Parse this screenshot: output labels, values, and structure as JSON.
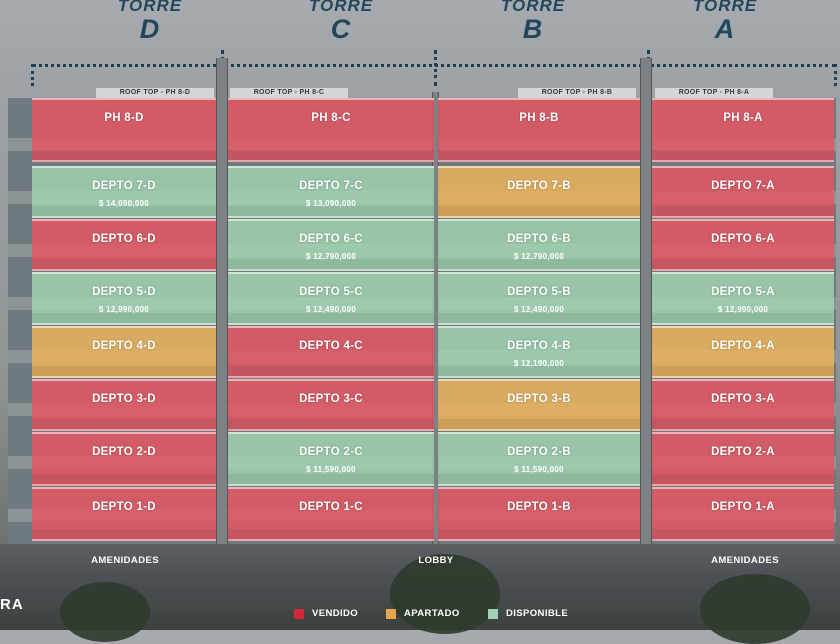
{
  "towers": [
    {
      "word": "TORRE",
      "letter": "D",
      "rooftop": "ROOF TOP - PH 8-D"
    },
    {
      "word": "TORRE",
      "letter": "C",
      "rooftop": "ROOF TOP - PH 8-C"
    },
    {
      "word": "TORRE",
      "letter": "B",
      "rooftop": "ROOF TOP - PH 8-B"
    },
    {
      "word": "TORRE",
      "letter": "A",
      "rooftop": "ROOF TOP - PH 8-A"
    }
  ],
  "floors": [
    {
      "units": [
        {
          "name": "PH 8-D",
          "status": "vendido",
          "price": ""
        },
        {
          "name": "PH 8-C",
          "status": "vendido",
          "price": ""
        },
        {
          "name": "PH 8-B",
          "status": "vendido",
          "price": ""
        },
        {
          "name": "PH 8-A",
          "status": "vendido",
          "price": ""
        }
      ]
    },
    {
      "units": [
        {
          "name": "DEPTO 7-D",
          "status": "disponible",
          "price": "$ 14,090,000"
        },
        {
          "name": "DEPTO 7-C",
          "status": "disponible",
          "price": "$ 13,090,000"
        },
        {
          "name": "DEPTO 7-B",
          "status": "apartado",
          "price": ""
        },
        {
          "name": "DEPTO 7-A",
          "status": "vendido",
          "price": ""
        }
      ]
    },
    {
      "units": [
        {
          "name": "DEPTO 6-D",
          "status": "vendido",
          "price": ""
        },
        {
          "name": "DEPTO 6-C",
          "status": "disponible",
          "price": "$ 12,790,000"
        },
        {
          "name": "DEPTO 6-B",
          "status": "disponible",
          "price": "$ 12,790,000"
        },
        {
          "name": "DEPTO 6-A",
          "status": "vendido",
          "price": ""
        }
      ]
    },
    {
      "units": [
        {
          "name": "DEPTO 5-D",
          "status": "disponible",
          "price": "$ 12,990,000"
        },
        {
          "name": "DEPTO 5-C",
          "status": "disponible",
          "price": "$ 12,490,000"
        },
        {
          "name": "DEPTO 5-B",
          "status": "disponible",
          "price": "$ 12,490,000"
        },
        {
          "name": "DEPTO 5-A",
          "status": "disponible",
          "price": "$ 12,990,000"
        }
      ]
    },
    {
      "units": [
        {
          "name": "DEPTO 4-D",
          "status": "apartado",
          "price": ""
        },
        {
          "name": "DEPTO 4-C",
          "status": "vendido",
          "price": ""
        },
        {
          "name": "DEPTO 4-B",
          "status": "disponible",
          "price": "$ 12,190,000"
        },
        {
          "name": "DEPTO 4-A",
          "status": "apartado",
          "price": ""
        }
      ]
    },
    {
      "units": [
        {
          "name": "DEPTO 3-D",
          "status": "vendido",
          "price": ""
        },
        {
          "name": "DEPTO 3-C",
          "status": "vendido",
          "price": ""
        },
        {
          "name": "DEPTO 3-B",
          "status": "apartado",
          "price": ""
        },
        {
          "name": "DEPTO 3-A",
          "status": "vendido",
          "price": ""
        }
      ]
    },
    {
      "units": [
        {
          "name": "DEPTO 2-D",
          "status": "vendido",
          "price": ""
        },
        {
          "name": "DEPTO 2-C",
          "status": "disponible",
          "price": "$ 11,590,000"
        },
        {
          "name": "DEPTO 2-B",
          "status": "disponible",
          "price": "$ 11,590,000"
        },
        {
          "name": "DEPTO 2-A",
          "status": "vendido",
          "price": ""
        }
      ]
    },
    {
      "units": [
        {
          "name": "DEPTO 1-D",
          "status": "vendido",
          "price": ""
        },
        {
          "name": "DEPTO 1-C",
          "status": "vendido",
          "price": ""
        },
        {
          "name": "DEPTO 1-B",
          "status": "vendido",
          "price": ""
        },
        {
          "name": "DEPTO 1-A",
          "status": "vendido",
          "price": ""
        }
      ]
    }
  ],
  "ground": {
    "left": "AMENIDADES",
    "center": "LOBBY",
    "right": "AMENIDADES"
  },
  "legend": [
    {
      "label": "VENDIDO",
      "color": "#d4283a"
    },
    {
      "label": "APARTADO",
      "color": "#e8a64c"
    },
    {
      "label": "DISPONIBLE",
      "color": "#9fd3b4"
    }
  ],
  "brand": "RA"
}
